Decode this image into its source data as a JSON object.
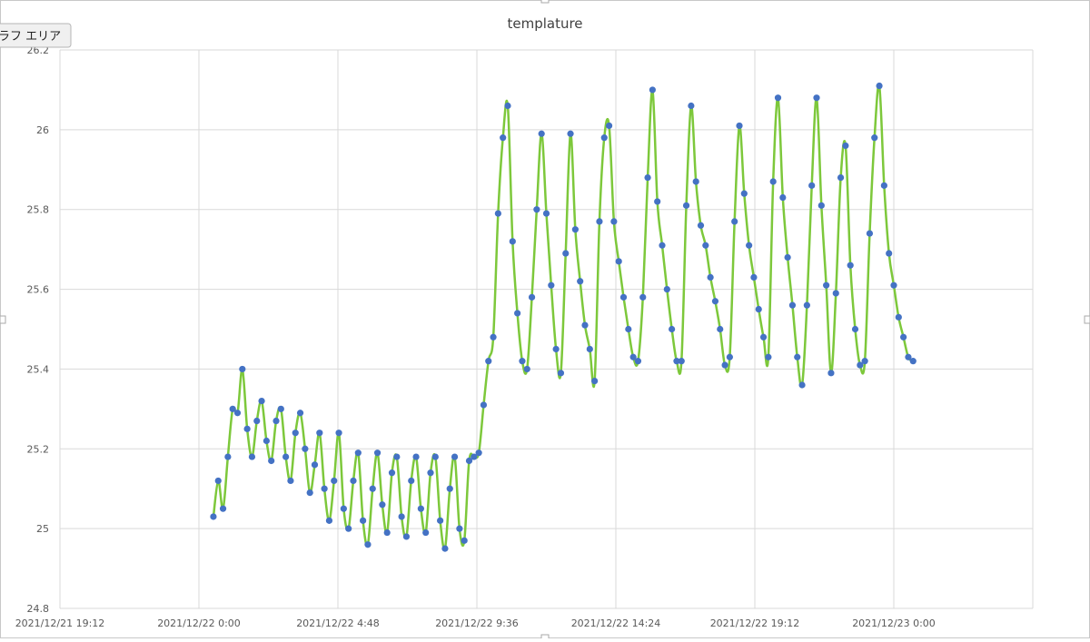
{
  "tooltip": "ラフ エリア",
  "chart_data": {
    "type": "scatter-smooth",
    "title": "templature",
    "line_color": "#7dc83b",
    "marker_color": "#4472c4",
    "grid": true,
    "xlim": [
      "2021/12/21 19:12",
      "2021/12/23 4:48"
    ],
    "xticks": [
      "2021/12/21 19:12",
      "2021/12/22 0:00",
      "2021/12/22 4:48",
      "2021/12/22 9:36",
      "2021/12/22 14:24",
      "2021/12/22 19:12",
      "2021/12/23 0:00"
    ],
    "ylim": [
      24.8,
      26.2
    ],
    "yticks": [
      24.8,
      25,
      25.2,
      25.4,
      25.6,
      25.8,
      26,
      26.2
    ],
    "x": [
      "2021/12/22 0:30",
      "2021/12/22 0:40",
      "2021/12/22 0:50",
      "2021/12/22 1:00",
      "2021/12/22 1:10",
      "2021/12/22 1:20",
      "2021/12/22 1:30",
      "2021/12/22 1:40",
      "2021/12/22 1:50",
      "2021/12/22 2:00",
      "2021/12/22 2:10",
      "2021/12/22 2:20",
      "2021/12/22 2:30",
      "2021/12/22 2:40",
      "2021/12/22 2:50",
      "2021/12/22 3:00",
      "2021/12/22 3:10",
      "2021/12/22 3:20",
      "2021/12/22 3:30",
      "2021/12/22 3:40",
      "2021/12/22 3:50",
      "2021/12/22 4:00",
      "2021/12/22 4:10",
      "2021/12/22 4:20",
      "2021/12/22 4:30",
      "2021/12/22 4:40",
      "2021/12/22 4:50",
      "2021/12/22 5:00",
      "2021/12/22 5:10",
      "2021/12/22 5:20",
      "2021/12/22 5:30",
      "2021/12/22 5:40",
      "2021/12/22 5:50",
      "2021/12/22 6:00",
      "2021/12/22 6:10",
      "2021/12/22 6:20",
      "2021/12/22 6:30",
      "2021/12/22 6:40",
      "2021/12/22 6:50",
      "2021/12/22 7:00",
      "2021/12/22 7:10",
      "2021/12/22 7:20",
      "2021/12/22 7:30",
      "2021/12/22 7:40",
      "2021/12/22 7:50",
      "2021/12/22 8:00",
      "2021/12/22 8:10",
      "2021/12/22 8:20",
      "2021/12/22 8:30",
      "2021/12/22 8:40",
      "2021/12/22 8:50",
      "2021/12/22 9:00",
      "2021/12/22 9:10",
      "2021/12/22 9:20",
      "2021/12/22 9:30",
      "2021/12/22 9:40",
      "2021/12/22 9:50",
      "2021/12/22 10:00",
      "2021/12/22 10:10",
      "2021/12/22 10:20",
      "2021/12/22 10:30",
      "2021/12/22 10:40",
      "2021/12/22 10:50",
      "2021/12/22 11:00",
      "2021/12/22 11:10",
      "2021/12/22 11:20",
      "2021/12/22 11:30",
      "2021/12/22 11:40",
      "2021/12/22 11:50",
      "2021/12/22 12:00",
      "2021/12/22 12:10",
      "2021/12/22 12:20",
      "2021/12/22 12:30",
      "2021/12/22 12:40",
      "2021/12/22 12:50",
      "2021/12/22 13:00",
      "2021/12/22 13:10",
      "2021/12/22 13:20",
      "2021/12/22 13:30",
      "2021/12/22 13:40",
      "2021/12/22 13:50",
      "2021/12/22 14:00",
      "2021/12/22 14:10",
      "2021/12/22 14:20",
      "2021/12/22 14:30",
      "2021/12/22 14:40",
      "2021/12/22 14:50",
      "2021/12/22 15:00",
      "2021/12/22 15:10",
      "2021/12/22 15:20",
      "2021/12/22 15:30",
      "2021/12/22 15:40",
      "2021/12/22 15:50",
      "2021/12/22 16:00",
      "2021/12/22 16:10",
      "2021/12/22 16:20",
      "2021/12/22 16:30",
      "2021/12/22 16:40",
      "2021/12/22 16:50",
      "2021/12/22 17:00",
      "2021/12/22 17:10",
      "2021/12/22 17:20",
      "2021/12/22 17:30",
      "2021/12/22 17:40",
      "2021/12/22 17:50",
      "2021/12/22 18:00",
      "2021/12/22 18:10",
      "2021/12/22 18:20",
      "2021/12/22 18:30",
      "2021/12/22 18:40",
      "2021/12/22 18:50",
      "2021/12/22 19:00",
      "2021/12/22 19:10",
      "2021/12/22 19:20",
      "2021/12/22 19:30",
      "2021/12/22 19:40",
      "2021/12/22 19:50",
      "2021/12/22 20:00",
      "2021/12/22 20:10",
      "2021/12/22 20:20",
      "2021/12/22 20:30",
      "2021/12/22 20:40",
      "2021/12/22 20:50",
      "2021/12/22 21:00",
      "2021/12/22 21:10",
      "2021/12/22 21:20",
      "2021/12/22 21:30",
      "2021/12/22 21:40",
      "2021/12/22 21:50",
      "2021/12/22 22:00",
      "2021/12/22 22:10",
      "2021/12/22 22:20",
      "2021/12/22 22:30",
      "2021/12/22 22:40",
      "2021/12/22 22:50",
      "2021/12/22 23:00",
      "2021/12/22 23:10",
      "2021/12/22 23:20",
      "2021/12/22 23:30",
      "2021/12/22 23:40",
      "2021/12/22 23:50",
      "2021/12/23 0:00",
      "2021/12/23 0:10",
      "2021/12/23 0:20",
      "2021/12/23 0:30",
      "2021/12/23 0:40"
    ],
    "values": [
      25.03,
      25.12,
      25.05,
      25.18,
      25.3,
      25.29,
      25.4,
      25.25,
      25.18,
      25.27,
      25.32,
      25.22,
      25.17,
      25.27,
      25.3,
      25.18,
      25.12,
      25.24,
      25.29,
      25.2,
      25.09,
      25.16,
      25.24,
      25.1,
      25.02,
      25.12,
      25.24,
      25.05,
      25.0,
      25.12,
      25.19,
      25.02,
      24.96,
      25.1,
      25.19,
      25.06,
      24.99,
      25.14,
      25.18,
      25.03,
      24.98,
      25.12,
      25.18,
      25.05,
      24.99,
      25.14,
      25.18,
      25.02,
      24.95,
      25.1,
      25.18,
      25.0,
      24.97,
      25.17,
      25.18,
      25.19,
      25.31,
      25.42,
      25.48,
      25.79,
      25.98,
      26.06,
      25.72,
      25.54,
      25.42,
      25.4,
      25.58,
      25.8,
      25.99,
      25.79,
      25.61,
      25.45,
      25.39,
      25.69,
      25.99,
      25.75,
      25.62,
      25.51,
      25.45,
      25.37,
      25.77,
      25.98,
      26.01,
      25.77,
      25.67,
      25.58,
      25.5,
      25.43,
      25.42,
      25.58,
      25.88,
      26.1,
      25.82,
      25.71,
      25.6,
      25.5,
      25.42,
      25.42,
      25.81,
      26.06,
      25.87,
      25.76,
      25.71,
      25.63,
      25.57,
      25.5,
      25.41,
      25.43,
      25.77,
      26.01,
      25.84,
      25.71,
      25.63,
      25.55,
      25.48,
      25.43,
      25.87,
      26.08,
      25.83,
      25.68,
      25.56,
      25.43,
      25.36,
      25.56,
      25.86,
      26.08,
      25.81,
      25.61,
      25.39,
      25.59,
      25.88,
      25.96,
      25.66,
      25.5,
      25.41,
      25.42,
      25.74,
      25.98,
      26.11,
      25.86,
      25.69,
      25.61,
      25.53,
      25.48,
      25.43,
      25.42
    ]
  }
}
